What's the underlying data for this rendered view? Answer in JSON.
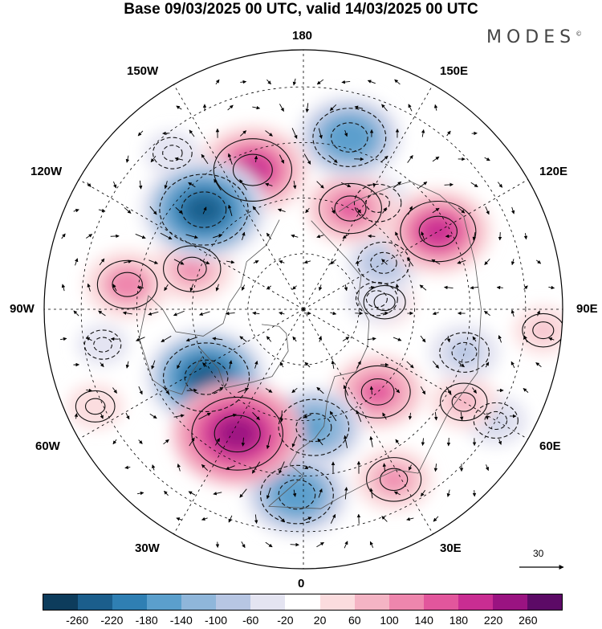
{
  "title": "Base 09/03/2025 00 UTC, valid 14/03/2025 00 UTC",
  "brand": "MODES",
  "brand_mark": "©",
  "longitude_labels": {
    "top": "180",
    "bottom": "0",
    "left": "90W",
    "right": "90E",
    "upper_left_1": "150W",
    "upper_left_2": "120W",
    "lower_left_1": "60W",
    "lower_left_2": "30W",
    "upper_right_1": "150E",
    "upper_right_2": "120E",
    "lower_right_1": "60E",
    "lower_right_2": "30E"
  },
  "wind_reference": {
    "value": "30"
  },
  "colorbar": {
    "colors": [
      "#0d3c5c",
      "#1b5e8c",
      "#2f7fb3",
      "#5b9fcc",
      "#8fb6da",
      "#b7c6e3",
      "#e4e4f1",
      "#ffffff",
      "#fbdcde",
      "#f4b4c4",
      "#ee86ad",
      "#e2569c",
      "#c92d92",
      "#9a1381",
      "#5c0a66"
    ],
    "tick_labels": [
      "-260",
      "-220",
      "-180",
      "-140",
      "-100",
      "-60",
      "-20",
      "20",
      "60",
      "100",
      "140",
      "180",
      "220",
      "260"
    ]
  },
  "anomaly_centers": [
    {
      "sign": "negative",
      "lon": -135,
      "lat": 52,
      "value": -240
    },
    {
      "sign": "positive",
      "lon": -160,
      "lat": 50,
      "value": 200
    },
    {
      "sign": "positive",
      "lon": -98,
      "lat": 42,
      "value": 130
    },
    {
      "sign": "positive",
      "lon": -110,
      "lat": 58,
      "value": 120
    },
    {
      "sign": "negative",
      "lon": -55,
      "lat": 58,
      "value": -230
    },
    {
      "sign": "positive",
      "lon": -28,
      "lat": 52,
      "value": 250
    },
    {
      "sign": "negative",
      "lon": 5,
      "lat": 58,
      "value": -170
    },
    {
      "sign": "negative",
      "lon": -2,
      "lat": 40,
      "value": -180
    },
    {
      "sign": "positive",
      "lon": 42,
      "lat": 60,
      "value": 150
    },
    {
      "sign": "positive",
      "lon": 28,
      "lat": 38,
      "value": 110
    },
    {
      "sign": "negative",
      "lon": 75,
      "lat": 45,
      "value": -90
    },
    {
      "sign": "negative",
      "lon": 120,
      "lat": 65,
      "value": -100
    },
    {
      "sign": "positive",
      "lon": 120,
      "lat": 48,
      "value": 190
    },
    {
      "sign": "positive",
      "lon": 155,
      "lat": 60,
      "value": 140
    },
    {
      "sign": "negative",
      "lon": 165,
      "lat": 42,
      "value": -180
    },
    {
      "sign": "negative",
      "lon": 145,
      "lat": 55,
      "value": -80
    },
    {
      "sign": "positive",
      "lon": 95,
      "lat": 68,
      "value": 60
    },
    {
      "sign": "negative",
      "lon": 98,
      "lat": 70,
      "value": -60
    },
    {
      "sign": "positive",
      "lon": 60,
      "lat": 40,
      "value": 80
    },
    {
      "sign": "negative",
      "lon": -80,
      "lat": 35,
      "value": -40
    },
    {
      "sign": "positive",
      "lon": -65,
      "lat": 28,
      "value": 50
    },
    {
      "sign": "negative",
      "lon": -140,
      "lat": 35,
      "value": -50
    },
    {
      "sign": "positive",
      "lon": 85,
      "lat": 25,
      "value": 60
    },
    {
      "sign": "negative",
      "lon": 60,
      "lat": 30,
      "value": -70
    }
  ]
}
